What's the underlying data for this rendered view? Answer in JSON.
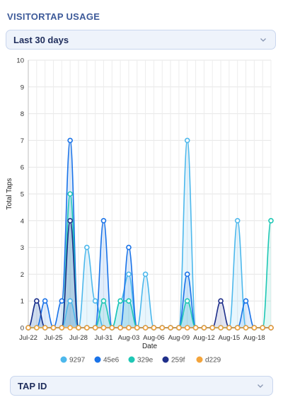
{
  "heading": "VISITORTAP USAGE",
  "range_select": {
    "value": "Last 30 days"
  },
  "tap_select": {
    "value": "TAP ID"
  },
  "colors": {
    "9297": "#4db8ec",
    "45e6": "#1a73e8",
    "329e": "#1fc7b5",
    "259f": "#1f2f8a",
    "d229": "#f3a43b"
  },
  "chart_data": {
    "type": "area",
    "xlabel": "Date",
    "ylabel": "Total Taps",
    "ylim": [
      0,
      10
    ],
    "yticks": [
      0,
      1,
      2,
      3,
      4,
      5,
      6,
      7,
      8,
      9,
      10
    ],
    "x": [
      "Jul-22",
      "Jul-23",
      "Jul-24",
      "Jul-25",
      "Jul-26",
      "Jul-27",
      "Jul-28",
      "Jul-29",
      "Jul-30",
      "Jul-31",
      "Aug-01",
      "Aug-02",
      "Aug-03",
      "Aug-04",
      "Aug-05",
      "Aug-06",
      "Aug-07",
      "Aug-08",
      "Aug-09",
      "Aug-10",
      "Aug-11",
      "Aug-12",
      "Aug-13",
      "Aug-14",
      "Aug-15",
      "Aug-16",
      "Aug-17",
      "Aug-18",
      "Aug-19",
      "Aug-20"
    ],
    "xtick_labels": [
      "Jul-22",
      "Jul-25",
      "Jul-28",
      "Jul-31",
      "Aug-03",
      "Aug-06",
      "Aug-09",
      "Aug-12",
      "Aug-15",
      "Aug-18"
    ],
    "legend_position": "bottom",
    "series": [
      {
        "name": "9297",
        "values": [
          0,
          1,
          0,
          0,
          0,
          1,
          0,
          3,
          1,
          0,
          0,
          1,
          2,
          0,
          2,
          0,
          0,
          0,
          0,
          7,
          0,
          0,
          0,
          0,
          0,
          4,
          0,
          0,
          0,
          0
        ]
      },
      {
        "name": "45e6",
        "values": [
          0,
          0,
          1,
          0,
          1,
          7,
          0,
          0,
          0,
          4,
          0,
          0,
          3,
          0,
          0,
          0,
          0,
          0,
          0,
          2,
          0,
          0,
          0,
          0,
          0,
          0,
          1,
          0,
          0,
          0
        ]
      },
      {
        "name": "329e",
        "values": [
          0,
          0,
          0,
          0,
          0,
          5,
          0,
          0,
          0,
          1,
          0,
          1,
          1,
          0,
          0,
          0,
          0,
          0,
          0,
          1,
          0,
          0,
          0,
          0,
          0,
          0,
          0,
          0,
          0,
          4
        ]
      },
      {
        "name": "259f",
        "values": [
          0,
          1,
          0,
          0,
          0,
          4,
          0,
          0,
          0,
          0,
          0,
          0,
          0,
          0,
          0,
          0,
          0,
          0,
          0,
          0,
          0,
          0,
          0,
          1,
          0,
          0,
          0,
          0,
          0,
          0
        ]
      },
      {
        "name": "d229",
        "values": [
          0,
          0,
          0,
          0,
          0,
          0,
          0,
          0,
          0,
          0,
          0,
          0,
          0,
          0,
          0,
          0,
          0,
          0,
          0,
          0,
          0,
          0,
          0,
          0,
          0,
          0,
          0,
          0,
          0,
          0
        ]
      }
    ]
  }
}
